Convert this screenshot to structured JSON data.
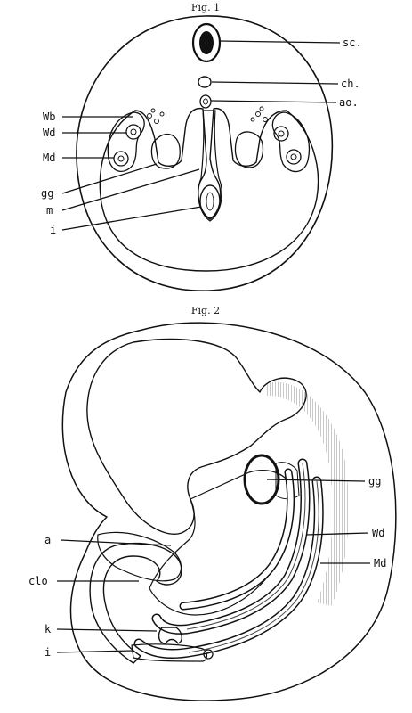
{
  "figures": [
    {
      "title": "Fig. 1",
      "labels": {
        "sc": "sc.",
        "ch": "ch.",
        "ao": "ao.",
        "wb": "Wb",
        "wd": "Wd",
        "md": "Md",
        "gg": "gg",
        "m": "m",
        "i": "i"
      }
    },
    {
      "title": "Fig. 2",
      "labels": {
        "gg": "gg",
        "a": "a",
        "wd": "Wd",
        "clo": "clo",
        "md": "Md",
        "k": "k",
        "i": "i"
      }
    }
  ],
  "colors": {
    "ink": "#111111",
    "paper": "#ffffff"
  }
}
